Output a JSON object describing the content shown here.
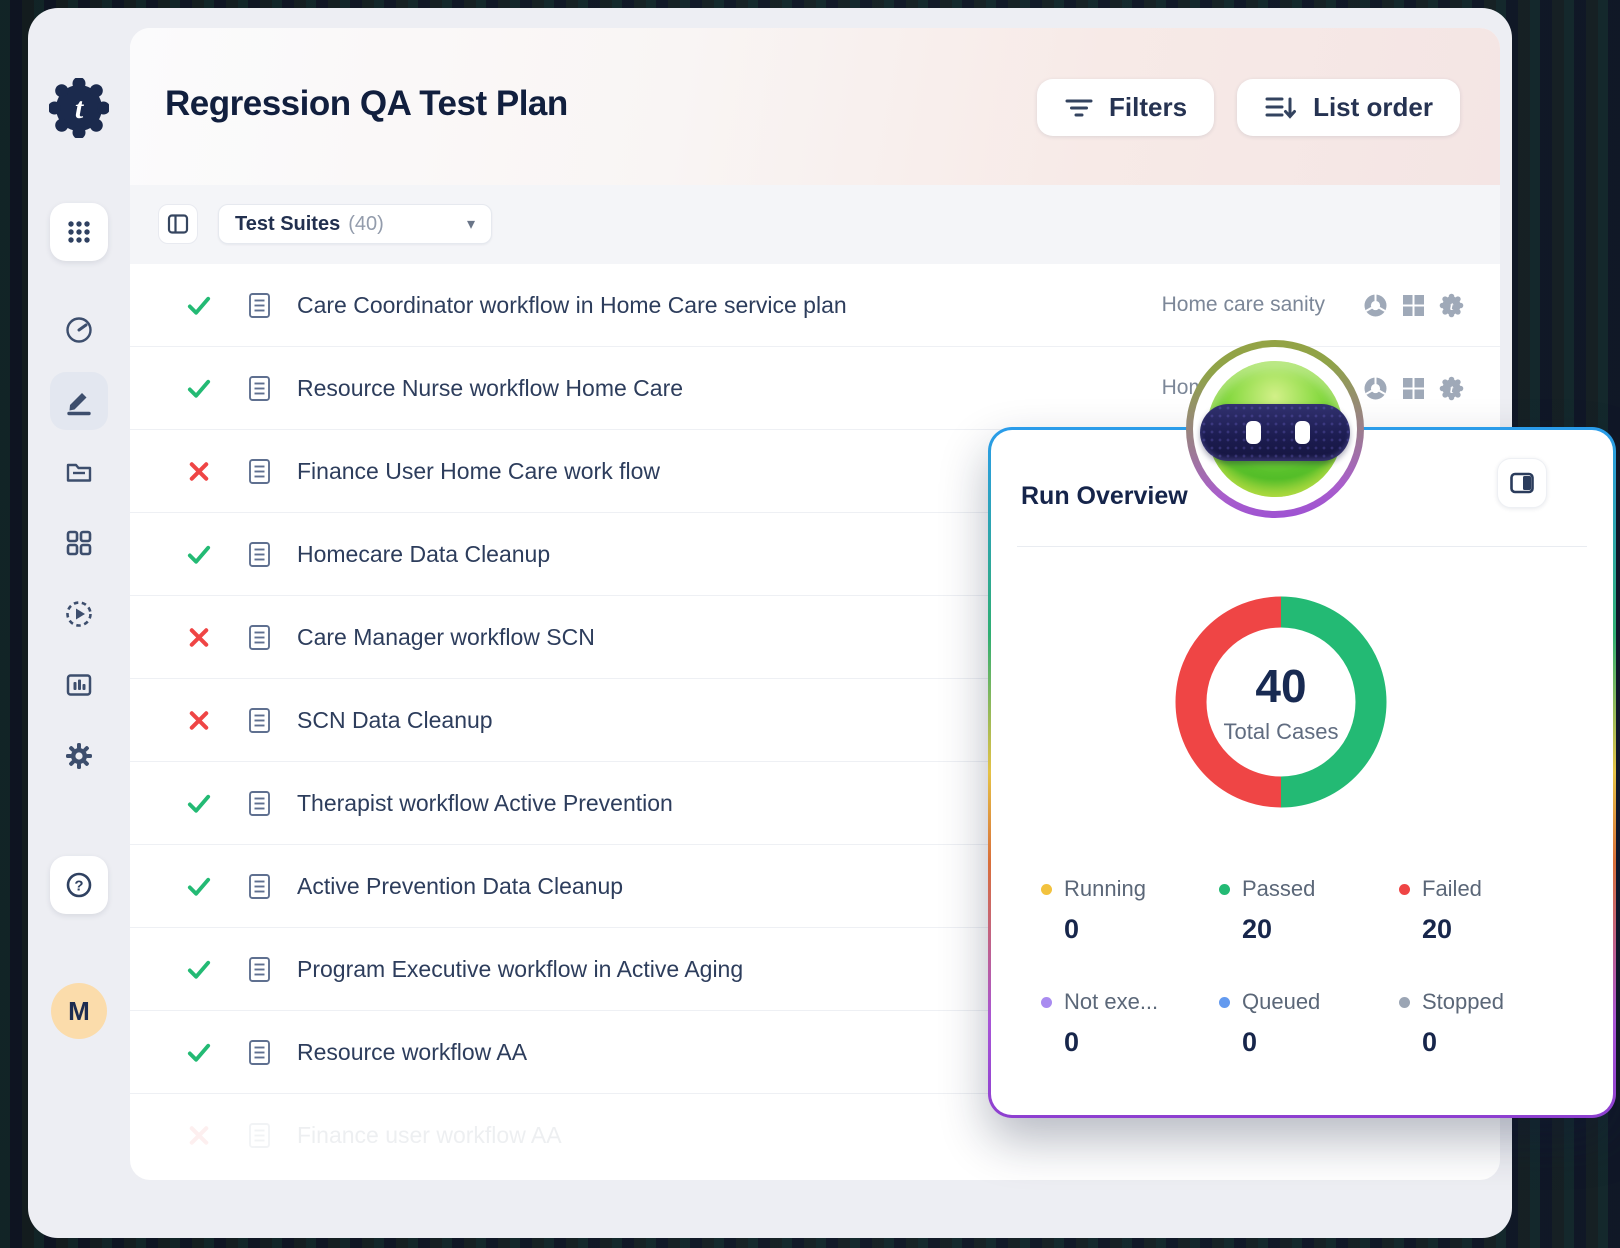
{
  "app": {
    "logo_letter": "t"
  },
  "header": {
    "title": "Regression QA Test Plan",
    "filters_label": "Filters",
    "list_order_label": "List order"
  },
  "toolbar": {
    "suites_label": "Test Suites",
    "suites_count": "(40)"
  },
  "sidebar": {
    "icons": [
      "apps-grid",
      "dashboard",
      "editor",
      "projects",
      "elements",
      "runs",
      "reports",
      "settings",
      "help"
    ],
    "avatar_initial": "M"
  },
  "suites": {
    "rows": [
      {
        "status": "passed",
        "name": "Care Coordinator workflow in Home Care service plan",
        "tag": "Home care sanity",
        "platform_icons": [
          "chrome",
          "windows",
          "testsigma"
        ]
      },
      {
        "status": "passed",
        "name": "Resource Nurse workflow Home Care",
        "tag": "Home care sanity",
        "platform_icons": [
          "chrome",
          "windows",
          "testsigma"
        ]
      },
      {
        "status": "failed",
        "name": "Finance User Home Care work flow"
      },
      {
        "status": "passed",
        "name": "Homecare Data Cleanup"
      },
      {
        "status": "failed",
        "name": "Care Manager workflow SCN"
      },
      {
        "status": "failed",
        "name": "SCN Data Cleanup"
      },
      {
        "status": "passed",
        "name": "Therapist workflow Active Prevention"
      },
      {
        "status": "passed",
        "name": "Active Prevention Data Cleanup"
      },
      {
        "status": "passed",
        "name": "Program Executive workflow in Active Aging"
      },
      {
        "status": "passed",
        "name": "Resource workflow AA"
      },
      {
        "status": "failed",
        "name": "Finance user workflow AA",
        "faded": true
      }
    ]
  },
  "run_overview": {
    "title": "Run Overview"
  },
  "chart_data": {
    "type": "pie",
    "donut": true,
    "title": "Run Overview",
    "center_value": "40",
    "center_label": "Total Cases",
    "legend_position": "bottom",
    "series": [
      {
        "label": "Running",
        "value": 0,
        "color": "#F2C23E"
      },
      {
        "label": "Passed",
        "value": 20,
        "color": "#23BA74"
      },
      {
        "label": "Failed",
        "value": 20,
        "color": "#EF4545"
      },
      {
        "label": "Not exe...",
        "value": 0,
        "color": "#A98BF0"
      },
      {
        "label": "Queued",
        "value": 0,
        "color": "#639AEF"
      },
      {
        "label": "Stopped",
        "value": 0,
        "color": "#9BA5B4"
      }
    ]
  },
  "colors": {
    "passed": "#23BA74",
    "failed": "#EF4545",
    "accent_blue": "#2A9CEB",
    "navy_text": "#15244A"
  }
}
